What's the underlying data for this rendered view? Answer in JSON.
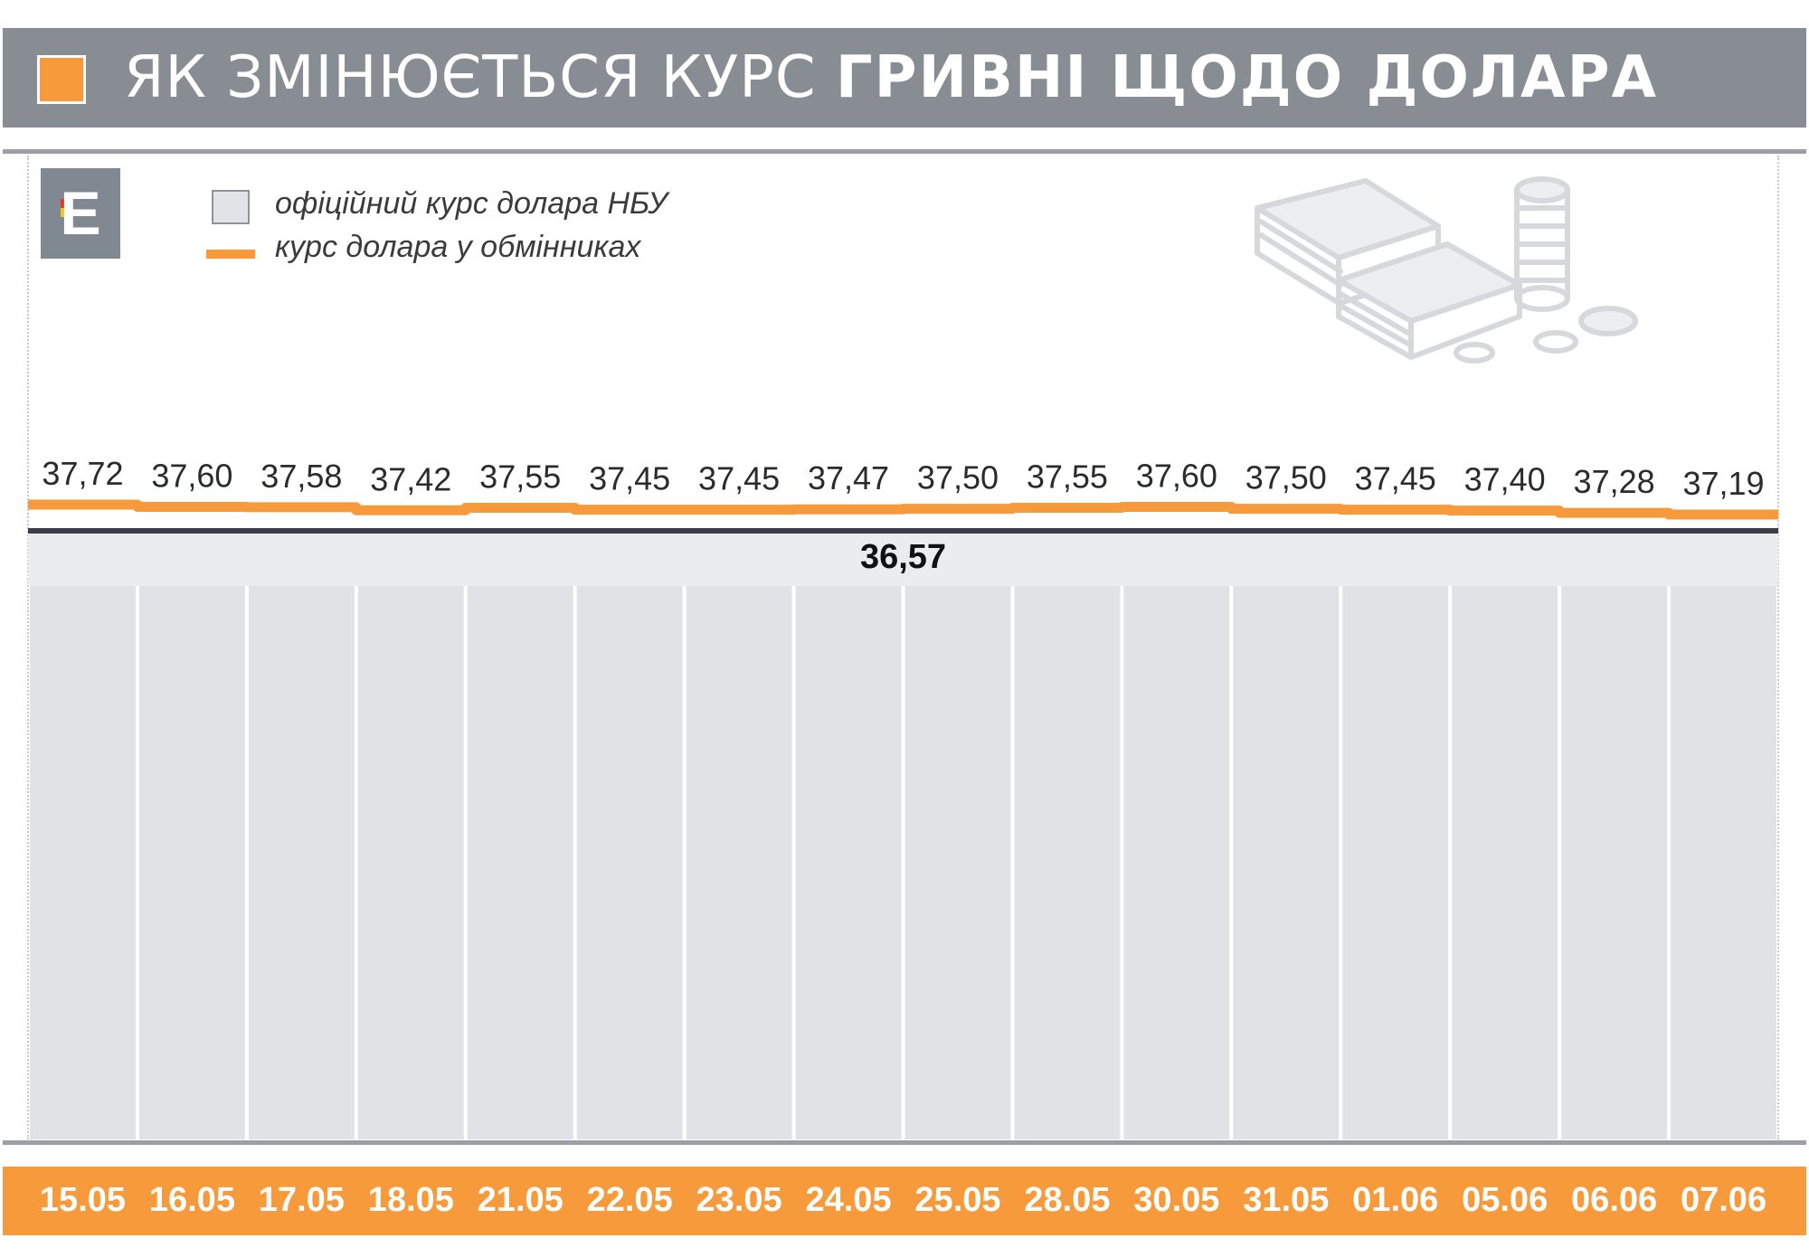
{
  "header": {
    "title_light": "ЯК ЗМІНЮЄТЬСЯ КУРС",
    "title_bold": "ГРИВНІ ЩОДО ДОЛАРА",
    "accent_color": "#f79a3b",
    "background_color": "#888d94"
  },
  "logo": {
    "letter": "E",
    "icon": "e-logo-icon"
  },
  "legend": {
    "official": "офіційний курс долара НБУ",
    "exchange": "курс долара у обмінниках"
  },
  "decoration": {
    "icon": "money-stack-icon"
  },
  "chart_data": {
    "type": "bar",
    "title": "ЯК ЗМІНЮЄТЬСЯ КУРС ГРИВНІ ЩОДО ДОЛАРА",
    "categories": [
      "15.05",
      "16.05",
      "17.05",
      "18.05",
      "21.05",
      "22.05",
      "23.05",
      "24.05",
      "25.05",
      "28.05",
      "30.05",
      "31.05",
      "01.06",
      "05.06",
      "06.06",
      "07.06"
    ],
    "series": [
      {
        "name": "офіційний курс долара НБУ",
        "type": "bar",
        "color": "#e1e2e5",
        "values": [
          36.57,
          36.57,
          36.57,
          36.57,
          36.57,
          36.57,
          36.57,
          36.57,
          36.57,
          36.57,
          36.57,
          36.57,
          36.57,
          36.57,
          36.57,
          36.57
        ],
        "value_label": "36,57"
      },
      {
        "name": "курс долара у обмінниках",
        "type": "step-line",
        "color": "#f79a3b",
        "values": [
          37.72,
          37.6,
          37.58,
          37.42,
          37.55,
          37.45,
          37.45,
          37.47,
          37.5,
          37.55,
          37.6,
          37.5,
          37.45,
          37.4,
          37.28,
          37.19
        ],
        "labels": [
          "37,72",
          "37,60",
          "37,58",
          "37,42",
          "37,55",
          "37,45",
          "37,45",
          "37,47",
          "37,50",
          "37,55",
          "37,60",
          "37,50",
          "37,45",
          "37,40",
          "37,28",
          "37,19"
        ]
      }
    ],
    "legend_position": "top-left",
    "grid": false
  }
}
